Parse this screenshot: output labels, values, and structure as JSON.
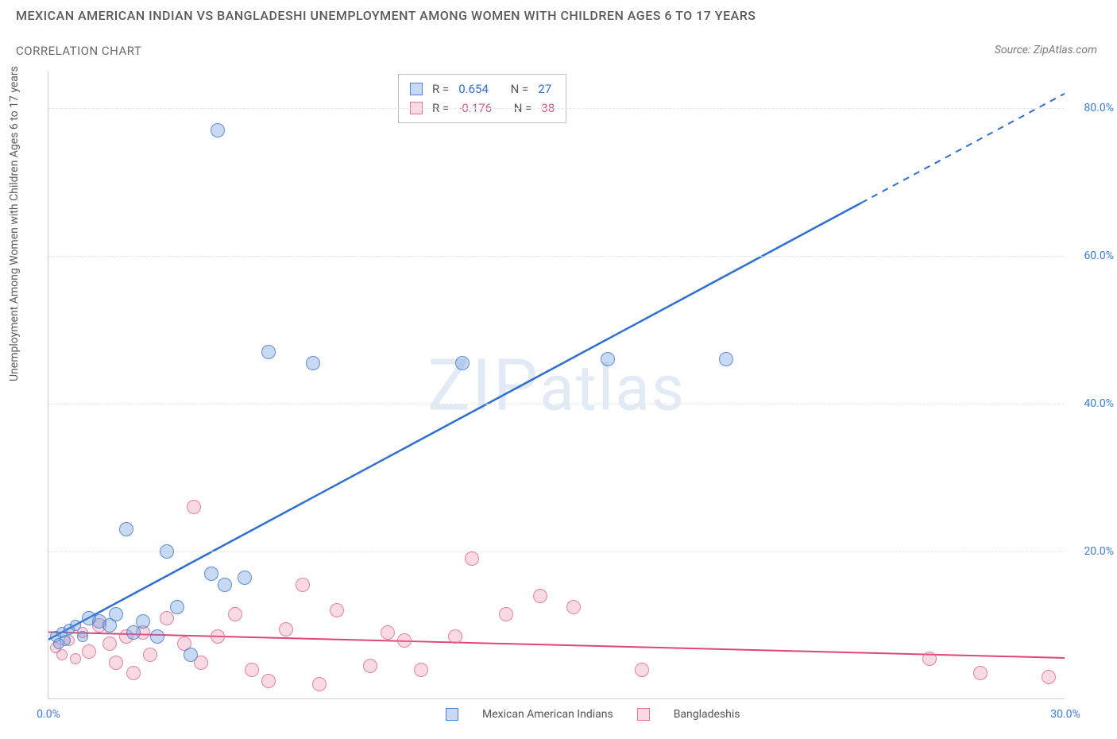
{
  "title": "MEXICAN AMERICAN INDIAN VS BANGLADESHI UNEMPLOYMENT AMONG WOMEN WITH CHILDREN AGES 6 TO 17 YEARS",
  "subtitle": "CORRELATION CHART",
  "source": "Source: ZipAtlas.com",
  "ylabel": "Unemployment Among Women with Children Ages 6 to 17 years",
  "watermark": "ZIPatlas",
  "chart": {
    "type": "scatter",
    "background_color": "#ffffff",
    "grid_color": "#e5e5e5",
    "axis_color": "#cccccc",
    "xlim": [
      0,
      30
    ],
    "ylim": [
      0,
      85
    ],
    "xticks": [
      0,
      30
    ],
    "xtick_labels": [
      "0.0%",
      "30.0%"
    ],
    "yticks": [
      20,
      40,
      60,
      80
    ],
    "ytick_labels": [
      "20.0%",
      "40.0%",
      "60.0%",
      "80.0%"
    ],
    "point_radius": 9,
    "small_point_radius": 7,
    "series": {
      "blue": {
        "label": "Mexican American Indians",
        "color_fill": "rgba(96,150,220,0.35)",
        "color_stroke": "rgba(70,120,200,0.8)",
        "R": "0.654",
        "N": "27",
        "trend": {
          "x1": 0,
          "y1": 8,
          "x2": 30,
          "y2": 82,
          "solid_until_x": 24,
          "color": "#2f6fd0",
          "width": 2.5
        },
        "points": [
          [
            0.2,
            8.5
          ],
          [
            0.3,
            7.5
          ],
          [
            0.4,
            9.0
          ],
          [
            0.5,
            8.0
          ],
          [
            0.6,
            9.5
          ],
          [
            0.8,
            10.0
          ],
          [
            1.0,
            8.5
          ],
          [
            1.2,
            11.0
          ],
          [
            1.5,
            10.5
          ],
          [
            1.8,
            10.0
          ],
          [
            2.0,
            11.5
          ],
          [
            2.3,
            23.0
          ],
          [
            2.5,
            9.0
          ],
          [
            2.8,
            10.5
          ],
          [
            3.2,
            8.5
          ],
          [
            3.5,
            20.0
          ],
          [
            3.8,
            12.5
          ],
          [
            4.2,
            6.0
          ],
          [
            4.8,
            17.0
          ],
          [
            5.2,
            15.5
          ],
          [
            5.0,
            77.0
          ],
          [
            5.8,
            16.5
          ],
          [
            6.5,
            47.0
          ],
          [
            7.8,
            45.5
          ],
          [
            12.2,
            45.5
          ],
          [
            16.5,
            46.0
          ],
          [
            20.0,
            46.0
          ]
        ]
      },
      "pink": {
        "label": "Bangladeshis",
        "color_fill": "rgba(235,130,160,0.3)",
        "color_stroke": "rgba(220,110,145,0.8)",
        "R": "-0.176",
        "N": "38",
        "trend": {
          "x1": 0,
          "y1": 9,
          "x2": 30,
          "y2": 5.5,
          "color": "#e0457a",
          "width": 2
        },
        "points": [
          [
            0.2,
            7.0
          ],
          [
            0.4,
            6.0
          ],
          [
            0.6,
            8.0
          ],
          [
            0.8,
            5.5
          ],
          [
            1.0,
            9.0
          ],
          [
            1.2,
            6.5
          ],
          [
            1.5,
            10.0
          ],
          [
            1.8,
            7.5
          ],
          [
            2.0,
            5.0
          ],
          [
            2.3,
            8.5
          ],
          [
            2.5,
            3.5
          ],
          [
            2.8,
            9.0
          ],
          [
            3.0,
            6.0
          ],
          [
            3.5,
            11.0
          ],
          [
            4.0,
            7.5
          ],
          [
            4.3,
            26.0
          ],
          [
            4.5,
            5.0
          ],
          [
            5.0,
            8.5
          ],
          [
            5.5,
            11.5
          ],
          [
            6.0,
            4.0
          ],
          [
            6.5,
            2.5
          ],
          [
            7.0,
            9.5
          ],
          [
            7.5,
            15.5
          ],
          [
            8.0,
            2.0
          ],
          [
            8.5,
            12.0
          ],
          [
            9.5,
            4.5
          ],
          [
            10.0,
            9.0
          ],
          [
            10.5,
            8.0
          ],
          [
            11.0,
            4.0
          ],
          [
            12.0,
            8.5
          ],
          [
            12.5,
            19.0
          ],
          [
            13.5,
            11.5
          ],
          [
            14.5,
            14.0
          ],
          [
            15.5,
            12.5
          ],
          [
            17.5,
            4.0
          ],
          [
            26.0,
            5.5
          ],
          [
            27.5,
            3.5
          ],
          [
            29.5,
            3.0
          ]
        ]
      }
    },
    "stats_labels": {
      "R": "R =",
      "N": "N ="
    },
    "tick_color": "#3b7dd8",
    "label_fontsize": 14,
    "title_fontsize": 16,
    "title_color": "#5a5a5a"
  }
}
